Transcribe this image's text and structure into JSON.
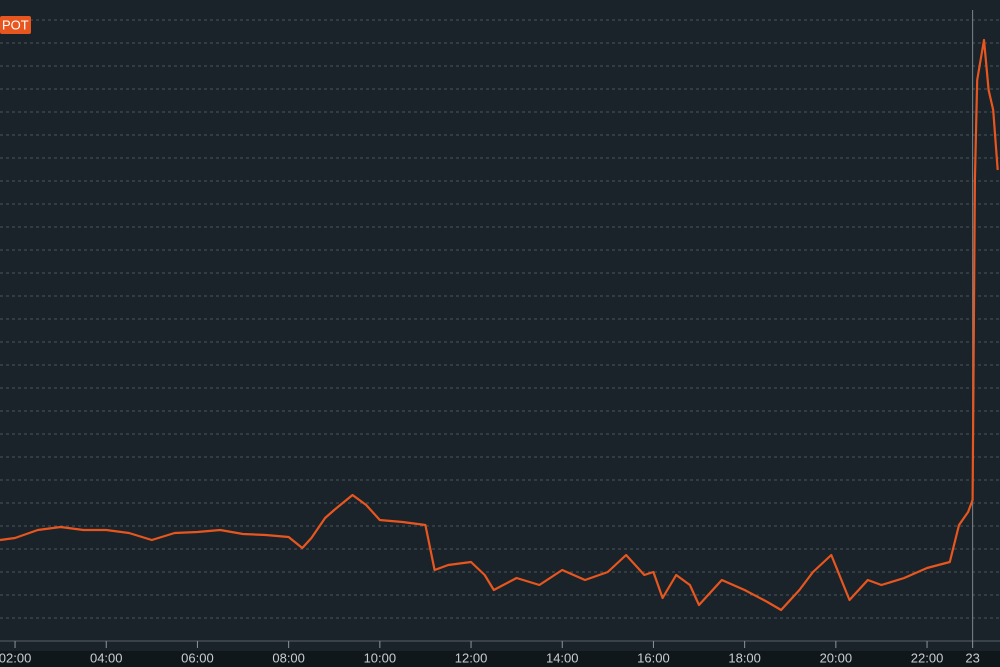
{
  "chart_data": {
    "type": "line",
    "title": "POT",
    "color": "#e8561f",
    "x": [
      1.67,
      2,
      2.5,
      3,
      3.5,
      4,
      4.5,
      5,
      5.5,
      6,
      6.5,
      7,
      7.5,
      8,
      8.3,
      8.5,
      8.8,
      9,
      9.4,
      9.7,
      10,
      10.5,
      11,
      11.2,
      11.5,
      12,
      12.3,
      12.5,
      13,
      13.5,
      14,
      14.5,
      15,
      15.4,
      15.8,
      16,
      16.2,
      16.5,
      16.8,
      17,
      17.5,
      18,
      18.5,
      18.8,
      19.2,
      19.5,
      19.9,
      20.3,
      20.7,
      21,
      21.5,
      22,
      22.5,
      22.7,
      22.9,
      23,
      23.05,
      23.1,
      23.25,
      23.35,
      23.45,
      23.55
    ],
    "values": [
      100,
      102,
      110,
      113,
      110,
      110,
      107,
      100,
      107,
      108,
      110,
      106,
      105,
      103,
      92,
      102,
      122,
      130,
      145,
      135,
      120,
      118,
      115,
      70,
      75,
      78,
      65,
      50,
      62,
      55,
      70,
      60,
      68,
      85,
      65,
      68,
      42,
      65,
      55,
      35,
      60,
      50,
      38,
      30,
      50,
      68,
      85,
      40,
      60,
      55,
      62,
      72,
      78,
      115,
      128,
      140,
      460,
      560,
      600,
      550,
      530,
      470
    ],
    "xlim": [
      1.67,
      23.6
    ],
    "ylim": [
      0,
      630
    ],
    "xticks": [
      {
        "value": 2,
        "label": "02:00"
      },
      {
        "value": 4,
        "label": "04:00"
      },
      {
        "value": 6,
        "label": "06:00"
      },
      {
        "value": 8,
        "label": "08:00"
      },
      {
        "value": 10,
        "label": "10:00"
      },
      {
        "value": 12,
        "label": "12:00"
      },
      {
        "value": 14,
        "label": "14:00"
      },
      {
        "value": 16,
        "label": "16:00"
      },
      {
        "value": 18,
        "label": "18:00"
      },
      {
        "value": 20,
        "label": "20:00"
      },
      {
        "value": 22,
        "label": "22:00"
      },
      {
        "value": 23,
        "label": "23"
      }
    ],
    "grid": true
  }
}
